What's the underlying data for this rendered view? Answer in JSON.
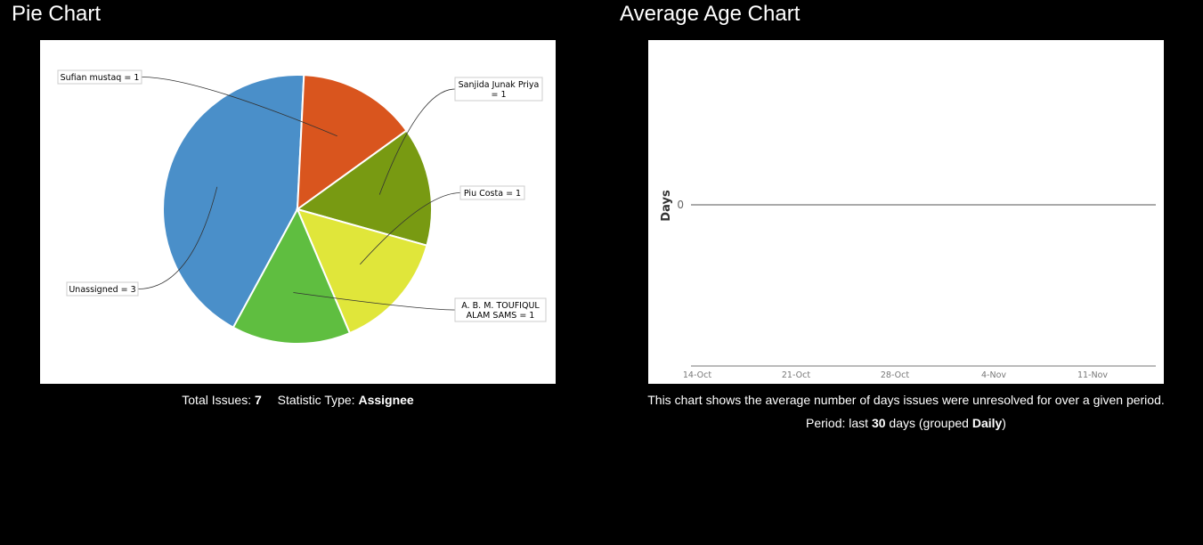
{
  "pie_panel": {
    "title": "Pie Chart",
    "total_label": "Total Issues:",
    "total_value": "7",
    "stat_label": "Statistic Type:",
    "stat_value": "Assignee"
  },
  "age_panel": {
    "title": "Average Age Chart",
    "description": "This chart shows the average number of days issues were unresolved for over a given period.",
    "period_prefix": "Period: last",
    "period_days": "30",
    "period_mid": "days (grouped",
    "period_group": "Daily",
    "period_suffix": ")"
  },
  "chart_data": [
    {
      "type": "pie",
      "slices": [
        {
          "label": "Unassigned = 3",
          "value": 3,
          "color": "#4a8fc9"
        },
        {
          "label": "Sufian mustaq = 1",
          "value": 1,
          "color": "#d9551e"
        },
        {
          "label": "Sanjida Junak Priya = 1",
          "value": 1,
          "color": "#789a12"
        },
        {
          "label": "Piu Costa = 1",
          "value": 1,
          "color": "#e0e63a"
        },
        {
          "label": "A. B. M. TOUFIQUL ALAM SAMS = 1",
          "value": 1,
          "color": "#5fbe40"
        }
      ]
    },
    {
      "type": "line",
      "ylabel": "Days",
      "y_ticks": [
        "0"
      ],
      "x_ticks": [
        "14-Oct",
        "21-Oct",
        "28-Oct",
        "4-Nov",
        "11-Nov"
      ],
      "series": [],
      "line_color": "#555555"
    }
  ]
}
